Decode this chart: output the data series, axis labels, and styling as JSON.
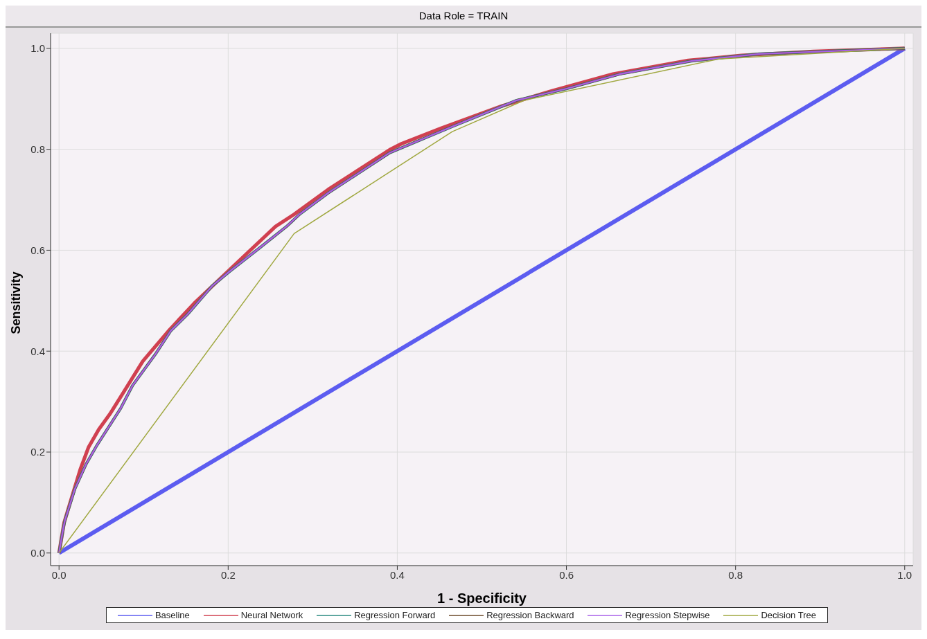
{
  "chart_data": {
    "type": "line",
    "title": "Data Role = TRAIN",
    "xlabel": "1 - Specificity",
    "ylabel": "Sensitivity",
    "xlim": [
      -0.01,
      1.01
    ],
    "ylim": [
      -0.025,
      1.03
    ],
    "xticks": [
      {
        "value": 0,
        "label": "0.0"
      },
      0.2,
      0.4,
      0.6,
      0.8,
      {
        "value": 1,
        "label": "1.0"
      }
    ],
    "yticks": [
      {
        "value": 0,
        "label": "0.0"
      },
      0.2,
      0.4,
      0.6,
      0.8,
      {
        "value": 1,
        "label": "1.0"
      }
    ],
    "grid": true,
    "legend": "bottom",
    "marker": "none",
    "line_style": "solid",
    "series": [
      {
        "name": "Baseline",
        "color": "#5c5cf0",
        "x": [
          0,
          1
        ],
        "values": [
          0,
          1
        ]
      },
      {
        "name": "Neural Network",
        "color": "#d04050",
        "x": [
          0,
          0.006,
          0.015,
          0.025,
          0.035,
          0.047,
          0.06,
          0.075,
          0.099,
          0.131,
          0.16,
          0.199,
          0.256,
          0.278,
          0.318,
          0.391,
          0.405,
          0.452,
          0.524,
          0.583,
          0.655,
          0.744,
          0.807,
          0.892,
          1
        ],
        "values": [
          0,
          0.06,
          0.11,
          0.165,
          0.21,
          0.245,
          0.275,
          0.315,
          0.38,
          0.443,
          0.495,
          0.557,
          0.647,
          0.671,
          0.72,
          0.799,
          0.811,
          0.842,
          0.886,
          0.916,
          0.949,
          0.976,
          0.986,
          0.994,
          1
        ]
      },
      {
        "name": "Regression Forward",
        "color": "#2a8a80",
        "x": [
          0,
          0.005,
          0.007,
          0.019,
          0.032,
          0.045,
          0.073,
          0.087,
          0.114,
          0.132,
          0.152,
          0.181,
          0.201,
          0.236,
          0.269,
          0.285,
          0.318,
          0.391,
          0.465,
          0.541,
          0.6,
          0.663,
          0.748,
          0.828,
          1
        ],
        "values": [
          0,
          0.049,
          0.065,
          0.128,
          0.176,
          0.214,
          0.287,
          0.332,
          0.394,
          0.44,
          0.473,
          0.529,
          0.557,
          0.603,
          0.647,
          0.672,
          0.713,
          0.793,
          0.845,
          0.897,
          0.92,
          0.949,
          0.975,
          0.989,
          1
        ]
      },
      {
        "name": "Regression Backward",
        "color": "#6b4a2a",
        "x": [
          0,
          0.005,
          0.007,
          0.019,
          0.032,
          0.045,
          0.073,
          0.087,
          0.114,
          0.132,
          0.152,
          0.181,
          0.201,
          0.236,
          0.269,
          0.285,
          0.318,
          0.391,
          0.465,
          0.541,
          0.6,
          0.663,
          0.748,
          0.828,
          1
        ],
        "values": [
          0,
          0.049,
          0.065,
          0.128,
          0.176,
          0.214,
          0.287,
          0.332,
          0.394,
          0.44,
          0.473,
          0.529,
          0.557,
          0.603,
          0.647,
          0.672,
          0.713,
          0.793,
          0.845,
          0.897,
          0.92,
          0.949,
          0.975,
          0.989,
          1
        ]
      },
      {
        "name": "Regression Stepwise",
        "color": "#a860e8",
        "x": [
          0,
          0.005,
          0.007,
          0.019,
          0.032,
          0.045,
          0.073,
          0.087,
          0.114,
          0.132,
          0.152,
          0.181,
          0.201,
          0.236,
          0.269,
          0.285,
          0.318,
          0.391,
          0.465,
          0.541,
          0.6,
          0.663,
          0.748,
          0.828,
          1
        ],
        "values": [
          0,
          0.049,
          0.065,
          0.128,
          0.176,
          0.214,
          0.287,
          0.332,
          0.394,
          0.44,
          0.473,
          0.529,
          0.557,
          0.603,
          0.647,
          0.672,
          0.713,
          0.793,
          0.845,
          0.897,
          0.92,
          0.949,
          0.975,
          0.989,
          1
        ]
      },
      {
        "name": "Decision Tree",
        "color": "#a0a840",
        "x": [
          0,
          0.278,
          0.465,
          0.55,
          0.78,
          1
        ],
        "values": [
          0,
          0.633,
          0.835,
          0.897,
          0.979,
          1
        ]
      }
    ]
  }
}
